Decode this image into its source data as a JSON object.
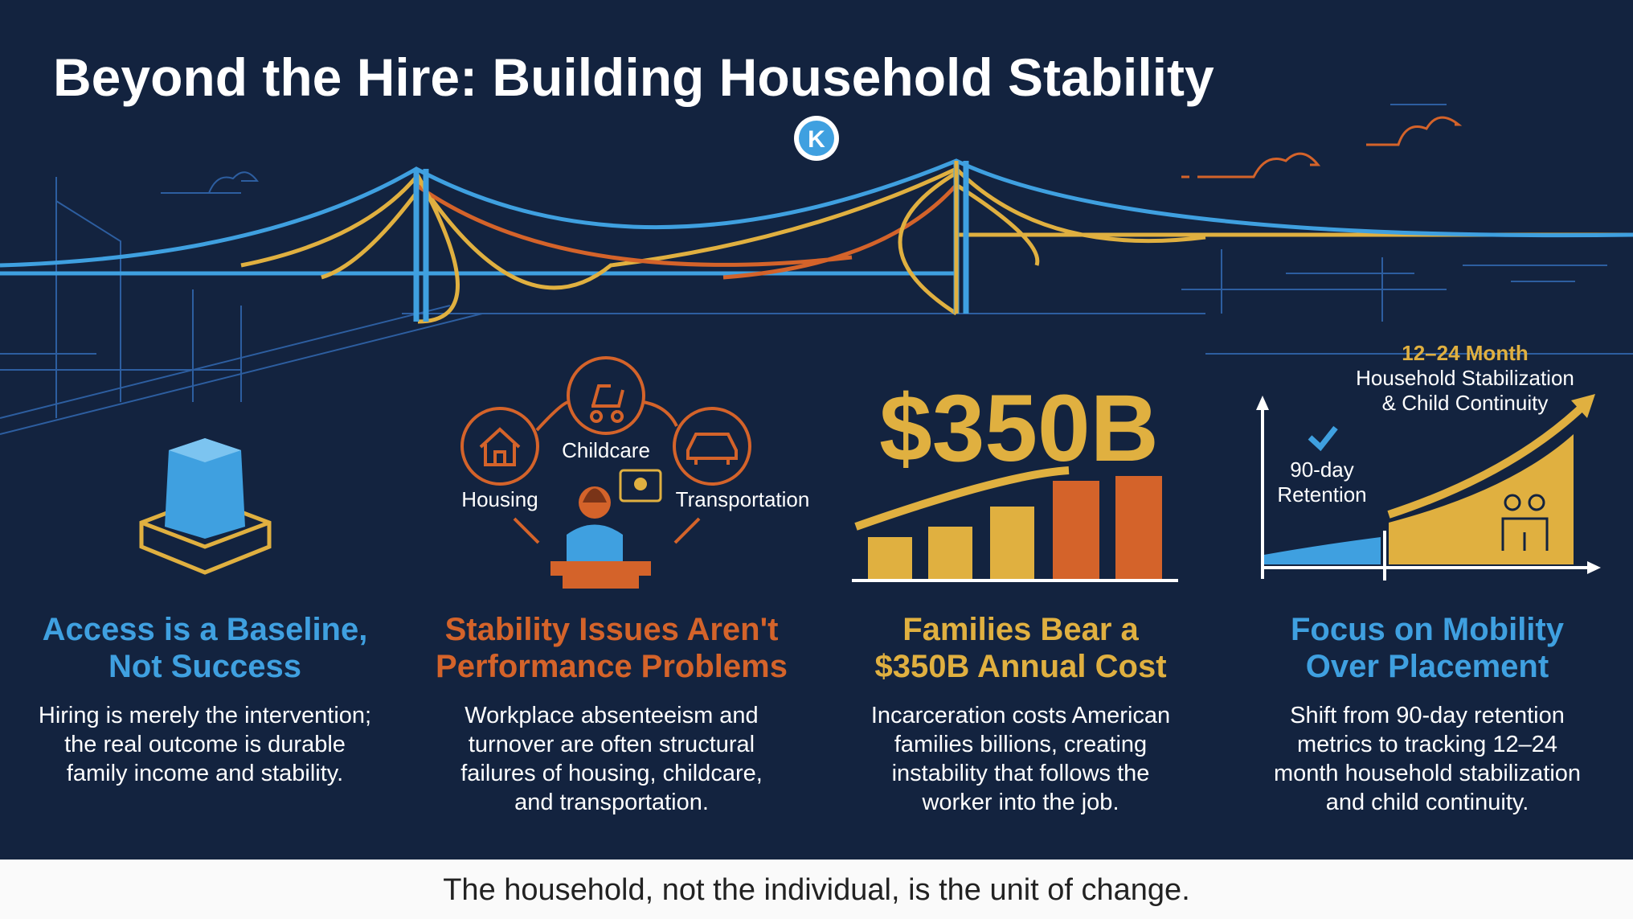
{
  "header": {
    "title": "Beyond the Hire: Building Household Stability",
    "logo": "K"
  },
  "stability_icons": {
    "housing": "Housing",
    "childcare": "Childcare",
    "transportation": "Transportation"
  },
  "cost_figure": "$350B",
  "mobility_chart": {
    "target_period": "12–24 Month",
    "target_lines": [
      "Household Stabilization",
      "& Child Continuity"
    ],
    "baseline_lines": [
      "90-day",
      "Retention"
    ]
  },
  "columns": [
    {
      "heading": [
        "Access is a Baseline,",
        "Not Success"
      ],
      "body": [
        "Hiring is merely the intervention;",
        "the real outcome is durable",
        "family income and stability."
      ]
    },
    {
      "heading": [
        "Stability Issues Aren't",
        "Performance Problems"
      ],
      "body": [
        "Workplace absenteeism and",
        "turnover are often structural",
        "failures of housing, childcare,",
        "and transportation."
      ]
    },
    {
      "heading": [
        "Families Bear a",
        "$350B Annual Cost"
      ],
      "body": [
        "Incarceration costs American",
        "families billions, creating",
        "instability that follows the",
        "worker into the job."
      ]
    },
    {
      "heading": [
        "Focus on Mobility",
        "Over Placement"
      ],
      "body": [
        "Shift from 90-day retention",
        "metrics to tracking 12–24",
        "month household stabilization",
        "and child continuity."
      ]
    }
  ],
  "footer": "The household, not the individual, is the unit of change."
}
